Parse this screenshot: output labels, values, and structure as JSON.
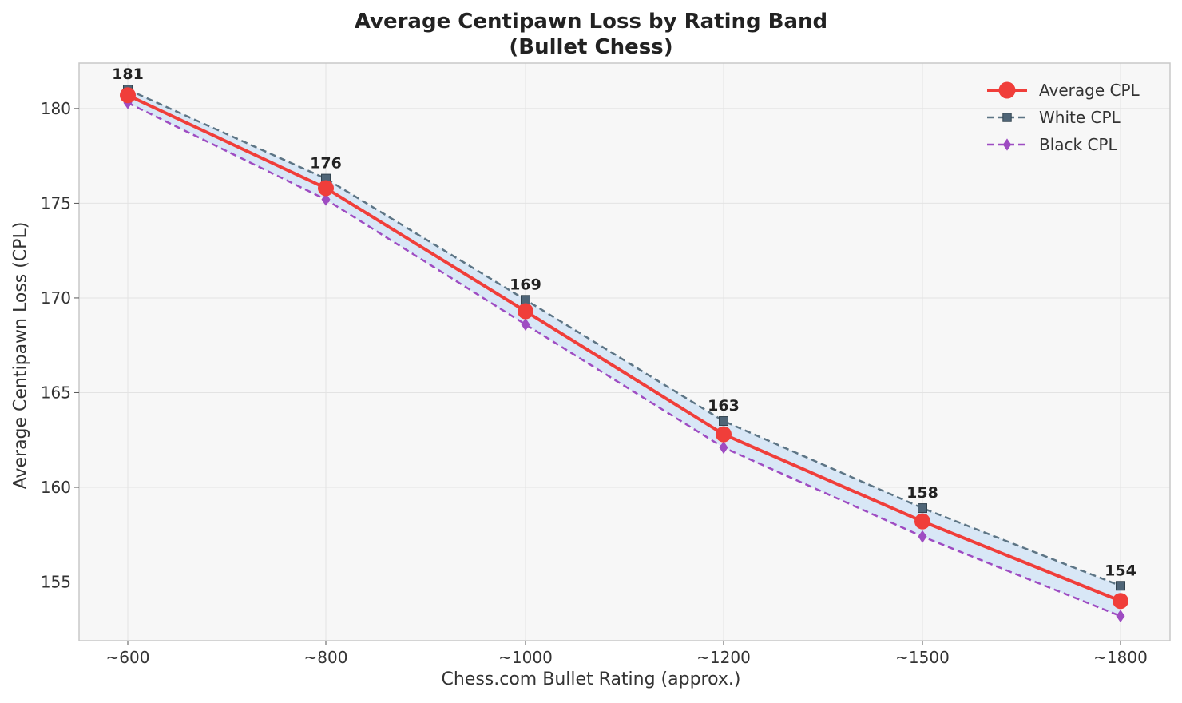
{
  "chart_data": {
    "type": "line",
    "title": "Average Centipawn Loss by Rating Band",
    "subtitle": "(Bullet Chess)",
    "xlabel": "Chess.com Bullet Rating (approx.)",
    "ylabel": "Average Centipawn Loss (CPL)",
    "categories": [
      "~600",
      "~800",
      "~1000",
      "~1200",
      "~1500",
      "~1800"
    ],
    "ylim": [
      151.9,
      182.4
    ],
    "yticks": [
      155,
      160,
      165,
      170,
      175,
      180
    ],
    "grid": true,
    "legend_position": "top-right",
    "series": [
      {
        "name": "Average CPL",
        "values": [
          180.7,
          175.8,
          169.3,
          162.8,
          158.2,
          154.0
        ],
        "color": "#f03e3a",
        "style": "solid",
        "marker": "circle"
      },
      {
        "name": "White CPL",
        "values": [
          181.0,
          176.3,
          169.9,
          163.5,
          158.9,
          154.8
        ],
        "color": "#5d7585",
        "style": "dashed",
        "marker": "square"
      },
      {
        "name": "Black CPL",
        "values": [
          180.3,
          175.2,
          168.6,
          162.1,
          157.4,
          153.2
        ],
        "color": "#9e4cc2",
        "style": "dashed",
        "marker": "diamond"
      }
    ],
    "data_labels": [
      "181",
      "176",
      "169",
      "163",
      "158",
      "154"
    ],
    "band_fill_color": "#d6e6f5",
    "background_color": "#f7f7f7"
  }
}
